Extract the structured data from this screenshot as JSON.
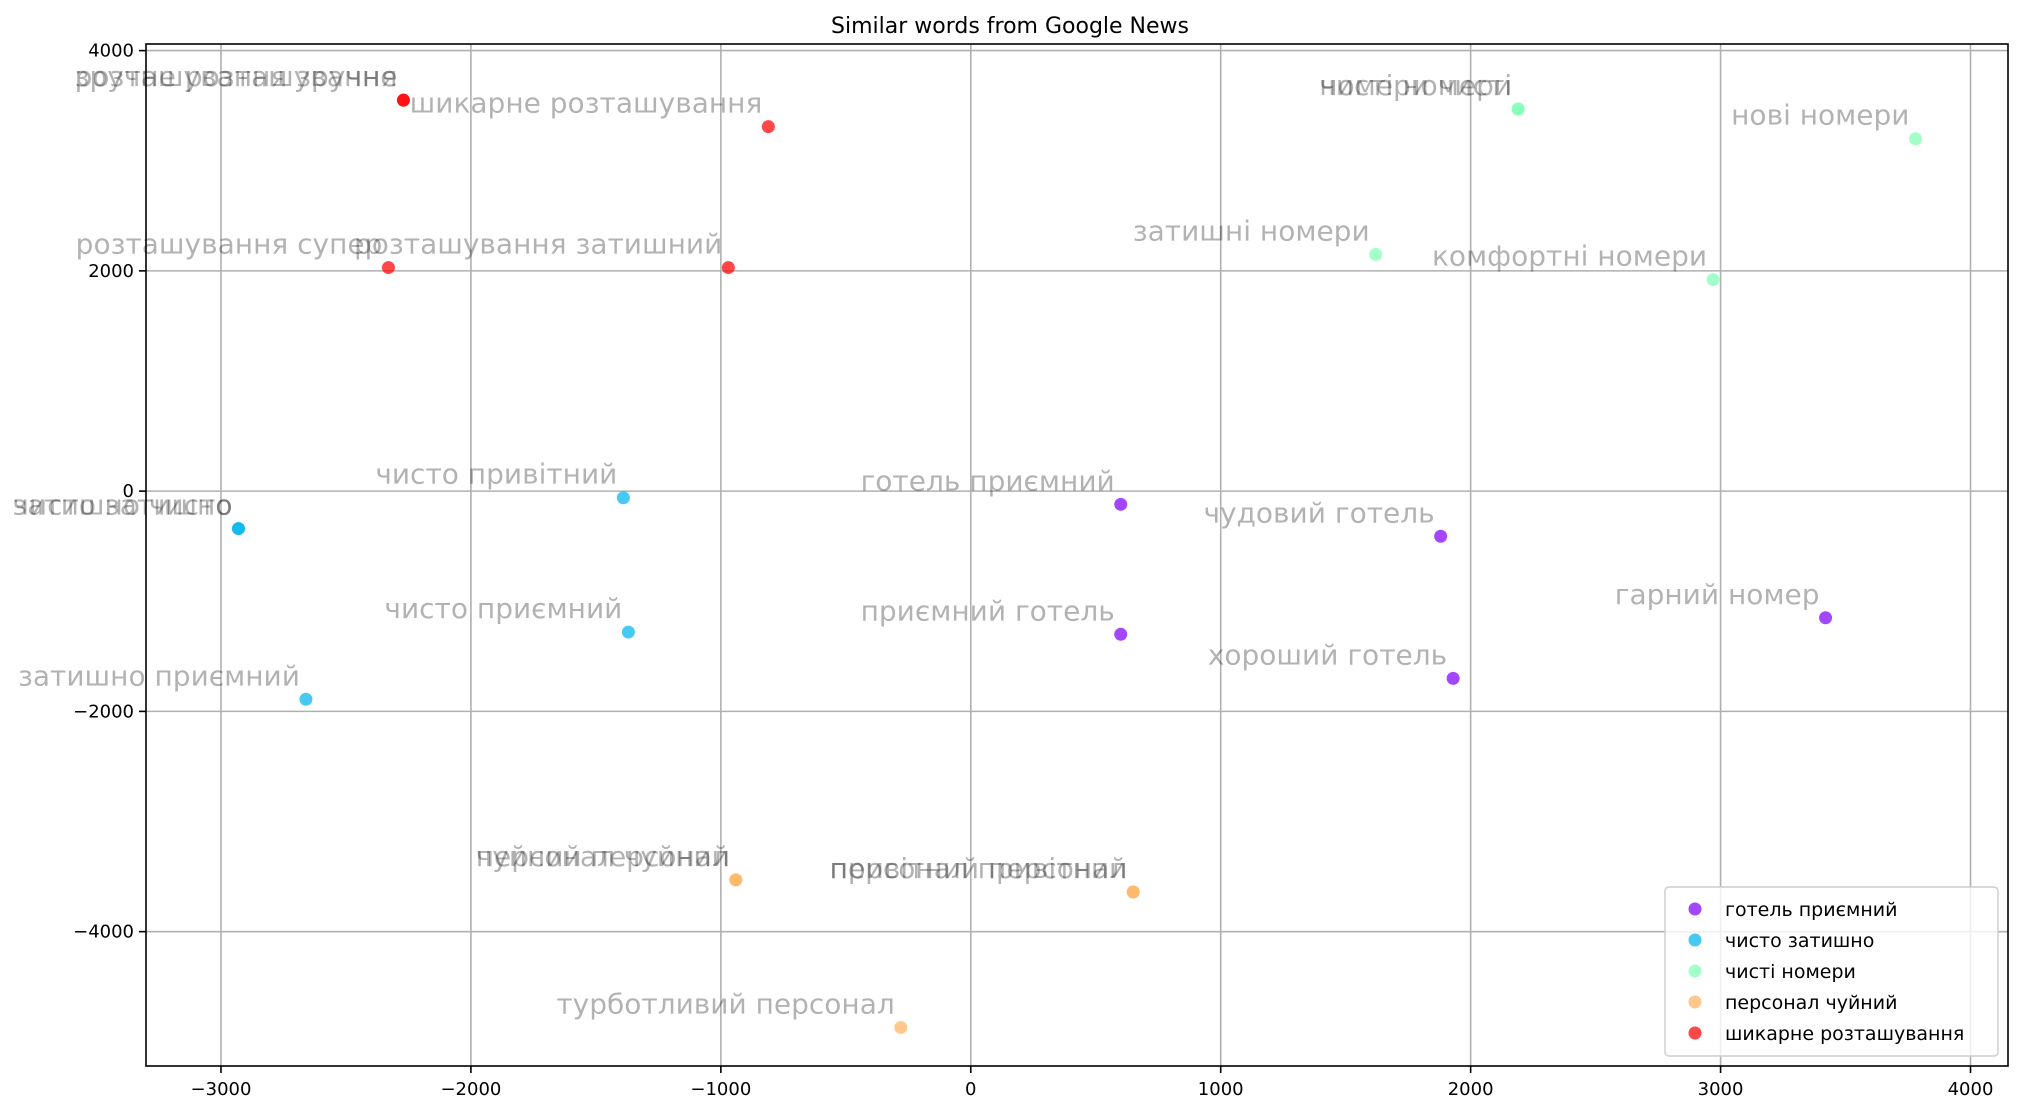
{
  "chart_data": {
    "type": "scatter",
    "title": "Similar words from Google News",
    "xlabel": "",
    "ylabel": "",
    "xlim": [
      -3300,
      4150
    ],
    "ylim": [
      -5220,
      4060
    ],
    "xticks": [
      -3000,
      -2000,
      -1000,
      0,
      1000,
      2000,
      3000,
      4000
    ],
    "yticks": [
      -4000,
      -2000,
      0,
      2000,
      4000
    ],
    "grid": true,
    "legend_position": "lower right",
    "series": [
      {
        "name": "готель приємний",
        "color": "#8000ff",
        "points": [
          {
            "x": 600,
            "y": -120,
            "label": "готель приємний"
          },
          {
            "x": 1880,
            "y": -410,
            "label": "чудовий готель"
          },
          {
            "x": 600,
            "y": -1300,
            "label": "приємний готель"
          },
          {
            "x": 1930,
            "y": -1700,
            "label": "хороший готель"
          },
          {
            "x": 3420,
            "y": -1150,
            "label": "гарний номер"
          }
        ]
      },
      {
        "name": "чисто затишно",
        "color": "#00b5eb",
        "points": [
          {
            "x": -2930,
            "y": -340,
            "label": "чисто затишно"
          },
          {
            "x": -2930,
            "y": -340,
            "label": "затишно чисто"
          },
          {
            "x": -1390,
            "y": -60,
            "label": "чисто привітний"
          },
          {
            "x": -1370,
            "y": -1280,
            "label": "чисто приємний"
          },
          {
            "x": -2660,
            "y": -1890,
            "label": "затишно приємний"
          }
        ]
      },
      {
        "name": "чисті номери",
        "color": "#80ffb4",
        "points": [
          {
            "x": 2190,
            "y": 3470,
            "label": "чисті номери"
          },
          {
            "x": 2190,
            "y": 3470,
            "label": "номери чисті"
          },
          {
            "x": 3780,
            "y": 3200,
            "label": "нові номери"
          },
          {
            "x": 1620,
            "y": 2150,
            "label": "затишні номери"
          },
          {
            "x": 2970,
            "y": 1920,
            "label": "комфортні номери"
          }
        ]
      },
      {
        "name": "персонал чуйний",
        "color": "#ffb360",
        "points": [
          {
            "x": -940,
            "y": -3530,
            "label": "персонал чуйний"
          },
          {
            "x": -940,
            "y": -3530,
            "label": "чуйний персонал"
          },
          {
            "x": 650,
            "y": -3640,
            "label": "персонал привітний"
          },
          {
            "x": 650,
            "y": -3640,
            "label": "привітний персонал"
          },
          {
            "x": -280,
            "y": -4870,
            "label": "турботливий персонал"
          }
        ]
      },
      {
        "name": "шикарне розташування",
        "color": "#ff0000",
        "points": [
          {
            "x": -2270,
            "y": 3550,
            "label": "розташування зручне"
          },
          {
            "x": -2270,
            "y": 3550,
            "label": "зручне розташування"
          },
          {
            "x": -810,
            "y": 3310,
            "label": "шикарне розташування"
          },
          {
            "x": -2330,
            "y": 2030,
            "label": "розташування супер"
          },
          {
            "x": -970,
            "y": 2030,
            "label": "розташування затишний"
          }
        ]
      }
    ]
  }
}
